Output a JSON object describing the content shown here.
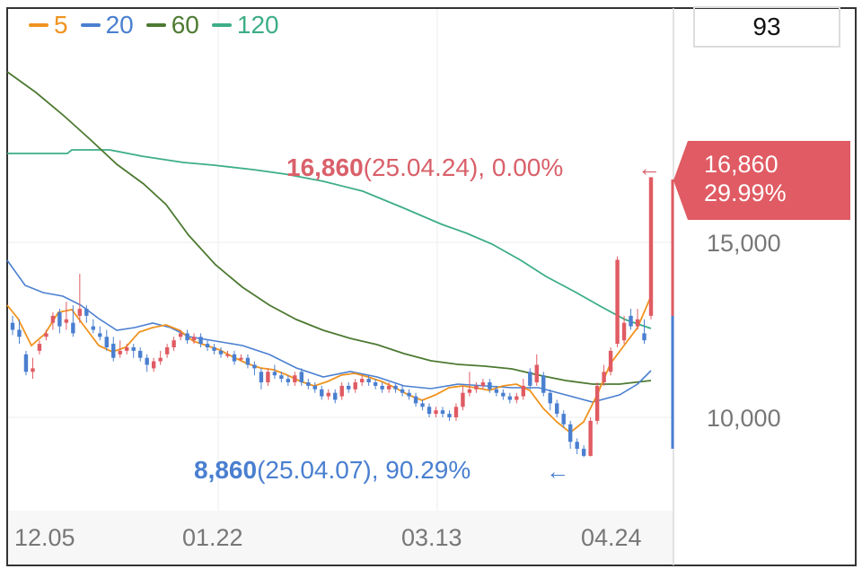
{
  "legend": [
    {
      "label": "5",
      "color": "#f0931e"
    },
    {
      "label": "20",
      "color": "#4a7fd0"
    },
    {
      "label": "60",
      "color": "#4d7a32"
    },
    {
      "label": "120",
      "color": "#3dae86"
    }
  ],
  "count_box": "93",
  "price_tag": {
    "price": "16,860",
    "change": "29.99%"
  },
  "annotations": {
    "high": {
      "value": "16,860",
      "detail": "(25.04.24), 0.00%",
      "arrow": "←"
    },
    "low": {
      "value": "8,860",
      "detail": "(25.04.07), 90.29%",
      "arrow": "←"
    }
  },
  "colors": {
    "up": "#e05b63",
    "down": "#4a7fd0"
  },
  "chart_data": {
    "type": "candlestick",
    "x_tick_labels": [
      "12.05",
      "01.22",
      "03.13",
      "04.24"
    ],
    "y_tick_labels": [
      "15,000",
      "10,000"
    ],
    "ylim": [
      8000,
      18000
    ],
    "x_axis_position": "bottom",
    "y_axis_position": "right",
    "grid": true,
    "legend_position": "top-left",
    "high_point": {
      "value": 16860,
      "date": "25.04.24",
      "pct": "0.00%"
    },
    "low_point": {
      "value": 8860,
      "date": "25.04.07",
      "pct": "90.29%"
    },
    "candles": [
      [
        12700,
        12500,
        12900,
        12350
      ],
      [
        12500,
        12300,
        12800,
        12100
      ],
      [
        11800,
        11300,
        11900,
        11200
      ],
      [
        11300,
        11400,
        11700,
        11100
      ],
      [
        11900,
        12100,
        12200,
        11800
      ],
      [
        12300,
        12400,
        12500,
        12200
      ],
      [
        12700,
        12900,
        13000,
        12500
      ],
      [
        13000,
        12600,
        13100,
        12400
      ],
      [
        12700,
        12800,
        13300,
        12500
      ],
      [
        12700,
        12400,
        13200,
        12300
      ],
      [
        12900,
        13100,
        14100,
        12700
      ],
      [
        13100,
        12900,
        13200,
        12700
      ],
      [
        12600,
        12500,
        12800,
        12400
      ],
      [
        12400,
        12300,
        12600,
        12200
      ],
      [
        12300,
        12000,
        12500,
        11900
      ],
      [
        12100,
        11700,
        12300,
        11600
      ],
      [
        11800,
        11900,
        12200,
        11700
      ],
      [
        11900,
        12000,
        12100,
        11800
      ],
      [
        12000,
        11900,
        12100,
        11700
      ],
      [
        11900,
        11700,
        12000,
        11600
      ],
      [
        11700,
        11500,
        11800,
        11300
      ],
      [
        11400,
        11600,
        11700,
        11300
      ],
      [
        11600,
        11700,
        11900,
        11500
      ],
      [
        11800,
        12000,
        12100,
        11700
      ],
      [
        12000,
        12200,
        12300,
        11900
      ],
      [
        12300,
        12400,
        12500,
        12200
      ],
      [
        12400,
        12200,
        12500,
        12100
      ],
      [
        12200,
        12300,
        12400,
        12100
      ],
      [
        12300,
        12100,
        12400,
        12000
      ],
      [
        12100,
        12000,
        12200,
        11900
      ],
      [
        12000,
        11900,
        12100,
        11800
      ],
      [
        11900,
        11800,
        12000,
        11700
      ],
      [
        11800,
        11800,
        11900,
        11700
      ],
      [
        11800,
        11600,
        11900,
        11500
      ],
      [
        11700,
        11700,
        11800,
        11600
      ],
      [
        11700,
        11500,
        11800,
        11400
      ],
      [
        11500,
        11400,
        11600,
        11200
      ],
      [
        11300,
        11000,
        11400,
        10800
      ],
      [
        11000,
        11300,
        11400,
        10900
      ],
      [
        11300,
        11200,
        11500,
        11100
      ],
      [
        11200,
        11100,
        11300,
        11000
      ],
      [
        11100,
        11000,
        11200,
        10900
      ],
      [
        11000,
        11200,
        11300,
        10900
      ],
      [
        11300,
        11000,
        11400,
        10900
      ],
      [
        11000,
        10900,
        11100,
        10800
      ],
      [
        10900,
        10800,
        11000,
        10700
      ],
      [
        10800,
        10600,
        10900,
        10500
      ],
      [
        10600,
        10700,
        10800,
        10500
      ],
      [
        10700,
        10500,
        10800,
        10400
      ],
      [
        10600,
        10900,
        11000,
        10500
      ],
      [
        10900,
        10800,
        11000,
        10700
      ],
      [
        10800,
        11000,
        11100,
        10700
      ],
      [
        11000,
        11100,
        11200,
        10900
      ],
      [
        11100,
        11000,
        11200,
        10900
      ],
      [
        11000,
        10900,
        11100,
        10800
      ],
      [
        10900,
        10800,
        11000,
        10700
      ],
      [
        10800,
        10900,
        11000,
        10700
      ],
      [
        10900,
        10800,
        11000,
        10700
      ],
      [
        10800,
        10700,
        10900,
        10600
      ],
      [
        10700,
        10600,
        10800,
        10500
      ],
      [
        10600,
        10400,
        10700,
        10300
      ],
      [
        10400,
        10300,
        10500,
        10200
      ],
      [
        10300,
        10100,
        10400,
        10000
      ],
      [
        10100,
        10200,
        10300,
        10000
      ],
      [
        10200,
        10100,
        10300,
        10000
      ],
      [
        10100,
        10000,
        10200,
        9900
      ],
      [
        10000,
        10300,
        10400,
        9900
      ],
      [
        10300,
        10700,
        10900,
        10200
      ],
      [
        10700,
        10800,
        11300,
        10600
      ],
      [
        10800,
        10900,
        11000,
        10700
      ],
      [
        10900,
        11000,
        11100,
        10800
      ],
      [
        11000,
        10800,
        11100,
        10700
      ],
      [
        10800,
        10700,
        10900,
        10600
      ],
      [
        10700,
        10600,
        10800,
        10500
      ],
      [
        10600,
        10500,
        10700,
        10400
      ],
      [
        10500,
        10600,
        10700,
        10400
      ],
      [
        10600,
        10900,
        11100,
        10500
      ],
      [
        11300,
        10900,
        11400,
        10800
      ],
      [
        11000,
        11500,
        11800,
        10900
      ],
      [
        11200,
        10700,
        11300,
        10600
      ],
      [
        10700,
        10400,
        10800,
        10200
      ],
      [
        10400,
        10100,
        10500,
        10000
      ],
      [
        10100,
        9800,
        10200,
        9700
      ],
      [
        9800,
        9300,
        9900,
        9100
      ],
      [
        9300,
        9100,
        9400,
        8950
      ],
      [
        9100,
        8900,
        9200,
        8860
      ],
      [
        8900,
        9900,
        10000,
        8880
      ],
      [
        9900,
        10900,
        11000,
        9800
      ],
      [
        11000,
        11300,
        11500,
        10900
      ],
      [
        11300,
        11900,
        12000,
        11200
      ],
      [
        12100,
        14500,
        14600,
        12000
      ],
      [
        12200,
        12700,
        12900,
        12100
      ],
      [
        12900,
        12600,
        13100,
        12500
      ],
      [
        12600,
        12800,
        13100,
        12500
      ],
      [
        12400,
        12200,
        12800,
        12100
      ],
      [
        12900,
        16860,
        16860,
        12800
      ]
    ]
  }
}
